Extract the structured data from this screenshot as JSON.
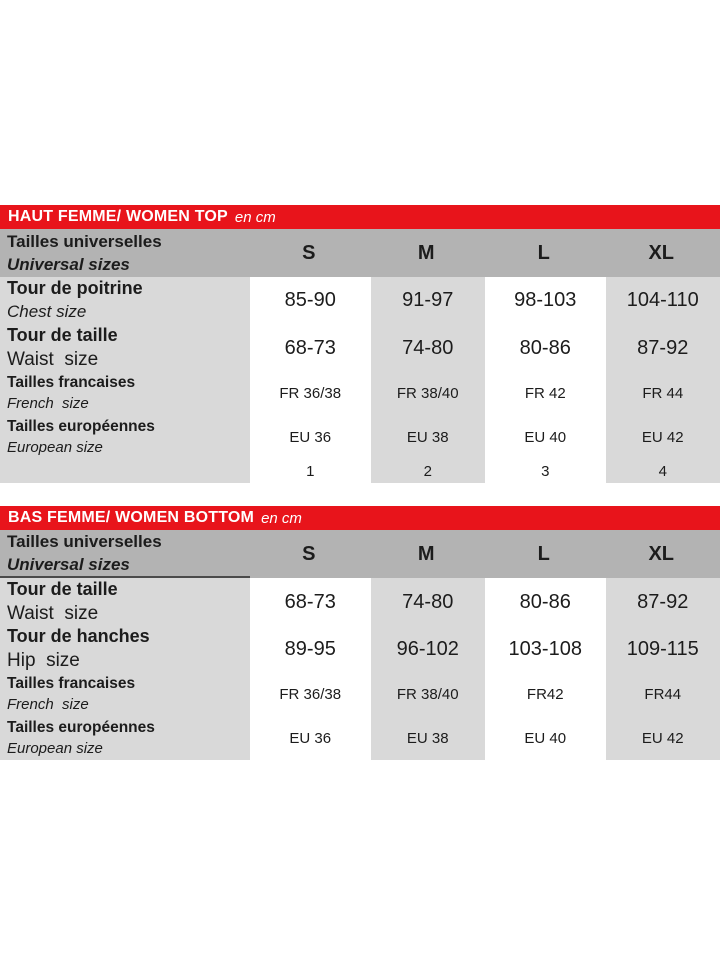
{
  "colors": {
    "banner_red": "#e8141b",
    "header_gray": "#b3b3b3",
    "cell_gray": "#d9d9d9",
    "text": "#1c1c1c"
  },
  "chart_data": [
    {
      "type": "table",
      "title": "HAUT FEMME/ WOMEN TOP",
      "unit": "en cm",
      "header": {
        "label_fr": "Tailles universelles",
        "label_en": "Universal sizes",
        "sizes": [
          "S",
          "M",
          "L",
          "XL"
        ]
      },
      "rows": [
        {
          "label_fr": "Tour de poitrine",
          "label_en": "Chest size",
          "values": [
            "85-90",
            "91-97",
            "98-103",
            "104-110"
          ]
        },
        {
          "label_fr": "Tour de taille",
          "label_en": "Waist  size",
          "values": [
            "68-73",
            "74-80",
            "80-86",
            "87-92"
          ]
        },
        {
          "label_fr": "Tailles francaises",
          "label_en": "French  size",
          "values": [
            "FR 36/38",
            "FR 38/40",
            "FR 42",
            "FR 44"
          ]
        },
        {
          "label_fr": "Tailles européennes",
          "label_en": "European size",
          "values": [
            "EU 36",
            "EU 38",
            "EU 40",
            "EU 42"
          ]
        }
      ],
      "footer_values": [
        "1",
        "2",
        "3",
        "4"
      ]
    },
    {
      "type": "table",
      "title": "BAS FEMME/ WOMEN BOTTOM",
      "unit": "en cm",
      "header": {
        "label_fr": "Tailles universelles",
        "label_en": "Universal sizes",
        "sizes": [
          "S",
          "M",
          "L",
          "XL"
        ]
      },
      "rows": [
        {
          "label_fr": "Tour de taille",
          "label_en": "Waist  size",
          "values": [
            "68-73",
            "74-80",
            "80-86",
            "87-92"
          ]
        },
        {
          "label_fr": "Tour de hanches",
          "label_en": "Hip  size",
          "values": [
            "89-95",
            "96-102",
            "103-108",
            "109-115"
          ]
        },
        {
          "label_fr": "Tailles francaises",
          "label_en": "French  size",
          "values": [
            "FR 36/38",
            "FR 38/40",
            "FR42",
            "FR44"
          ]
        },
        {
          "label_fr": "Tailles européennes",
          "label_en": "European size",
          "values": [
            "EU 36",
            "EU 38",
            "EU 40",
            "EU 42"
          ]
        }
      ]
    }
  ]
}
